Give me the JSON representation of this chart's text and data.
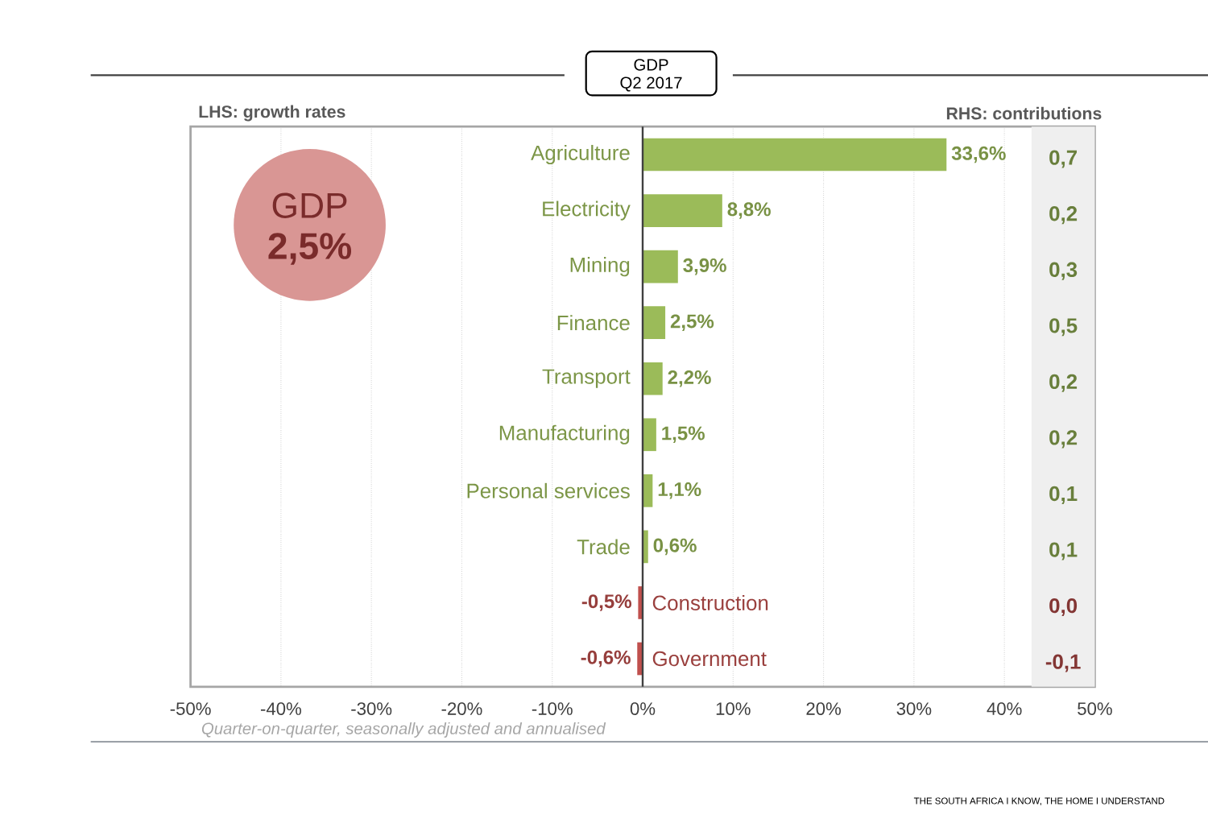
{
  "chart_data": {
    "type": "bar",
    "orientation": "horizontal",
    "title": "GDP",
    "subtitle": "Q2 2017",
    "categories": [
      "Agriculture",
      "Electricity",
      "Mining",
      "Finance",
      "Transport",
      "Manufacturing",
      "Personal services",
      "Trade",
      "Construction",
      "Government"
    ],
    "values": [
      33.6,
      8.8,
      3.9,
      2.5,
      2.2,
      1.5,
      1.1,
      0.6,
      -0.5,
      -0.6
    ],
    "colors": [
      "#9bbb59",
      "#9bbb59",
      "#9bbb59",
      "#9bbb59",
      "#9bbb59",
      "#9bbb59",
      "#9bbb59",
      "#9bbb59",
      "#c0504d",
      "#c0504d"
    ],
    "value_labels": [
      "33,6%",
      "8,8%",
      "3,9%",
      "2,5%",
      "2,2%",
      "1,5%",
      "1,1%",
      "0,6%",
      "-0,5%",
      "-0,6%"
    ],
    "xlim": [
      -50,
      50
    ],
    "xticks": [
      {
        "value": -50,
        "label": "-50%"
      },
      {
        "value": -40,
        "label": "-40%"
      },
      {
        "value": -30,
        "label": "-30%"
      },
      {
        "value": -20,
        "label": "-20%"
      },
      {
        "value": -10,
        "label": "-10%"
      },
      {
        "value": 0,
        "label": "0%"
      },
      {
        "value": 10,
        "label": "10%"
      },
      {
        "value": 20,
        "label": "20%"
      },
      {
        "value": 30,
        "label": "30%"
      },
      {
        "value": 40,
        "label": "40%"
      },
      {
        "value": 50,
        "label": "50%"
      }
    ],
    "grid": true,
    "bands": [
      {
        "axis": "x",
        "from": 43,
        "to": 50,
        "color": "#efefef"
      }
    ],
    "annotations": [
      "LHS: growth rates",
      "RHS: contributions",
      "GDP",
      "2,5%",
      "Quarter-on-quarter, seasonally adjusted and annualised",
      "THE SOUTH AFRICA I KNOW, THE HOME I UNDERSTAND",
      "0,7",
      "0,2",
      "0,3",
      "0,5",
      "0,2",
      "0,2",
      "0,1",
      "0,1",
      "0,0",
      "-0,1"
    ]
  }
}
